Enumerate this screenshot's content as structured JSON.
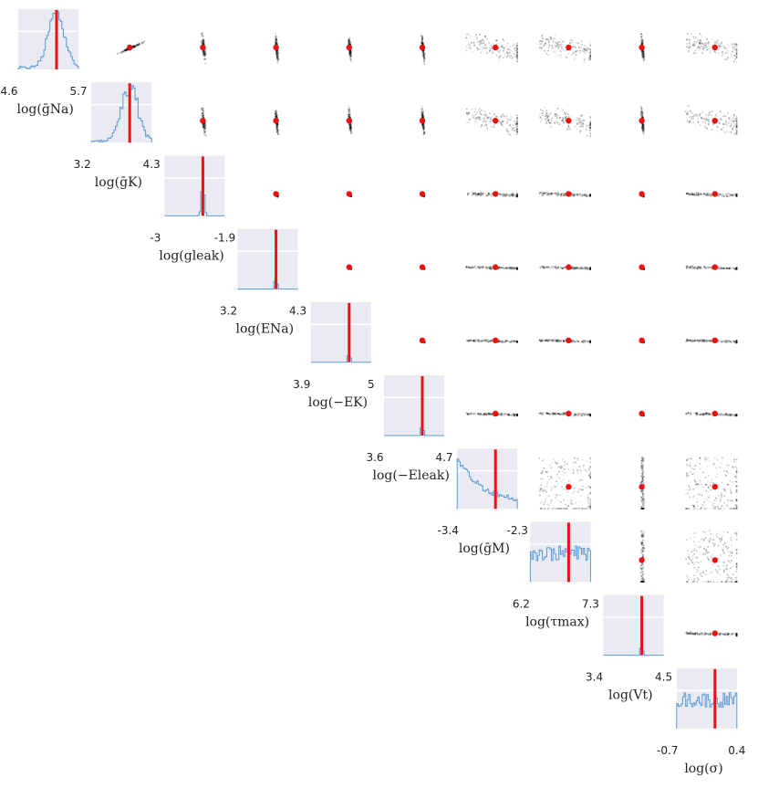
{
  "chart_data": {
    "type": "pairplot",
    "parameters": [
      {
        "label": "log(ḡNa)",
        "range": [
          4.6,
          5.7
        ],
        "range_labels": [
          "4.6",
          "5.7"
        ],
        "true": 5.3
      },
      {
        "label": "log(ḡK)",
        "range": [
          3.2,
          4.3
        ],
        "range_labels": [
          "3.2",
          "4.3"
        ],
        "true": 3.9
      },
      {
        "label": "log(gleak)",
        "range": [
          -3.0,
          -1.9
        ],
        "range_labels": [
          "-3",
          "-1.9"
        ],
        "true": -2.3
      },
      {
        "label": "log(ENa)",
        "range": [
          3.2,
          4.3
        ],
        "range_labels": [
          "3.2",
          "4.3"
        ],
        "true": 3.9
      },
      {
        "label": "log(−EK)",
        "range": [
          3.9,
          5.0
        ],
        "range_labels": [
          "3.9",
          "5"
        ],
        "true": 4.6
      },
      {
        "label": "log(−Eleak)",
        "range": [
          3.6,
          4.7
        ],
        "range_labels": [
          "3.6",
          "4.7"
        ],
        "true": 4.3
      },
      {
        "label": "log(ḡM)",
        "range": [
          -3.4,
          -2.3
        ],
        "range_labels": [
          "-3.4",
          "-2.3"
        ],
        "true": -2.7
      },
      {
        "label": "log(τmax)",
        "range": [
          6.2,
          7.3
        ],
        "range_labels": [
          "6.2",
          "7.3"
        ],
        "true": 6.9
      },
      {
        "label": "log(Vt)",
        "range": [
          3.4,
          4.5
        ],
        "range_labels": [
          "3.4",
          "4.5"
        ],
        "true": 4.1
      },
      {
        "label": "log(σ)",
        "range": [
          -0.7,
          0.4
        ],
        "range_labels": [
          "-0.7",
          "0.4"
        ],
        "true": 0.0
      }
    ],
    "colors": {
      "diag_bg": "#eaeaf2",
      "hist": "#5b9bd5",
      "truth_line": "#ee1111",
      "truth_dot": "#ee1111",
      "density": "#000000",
      "grid": "#ffffff"
    }
  }
}
